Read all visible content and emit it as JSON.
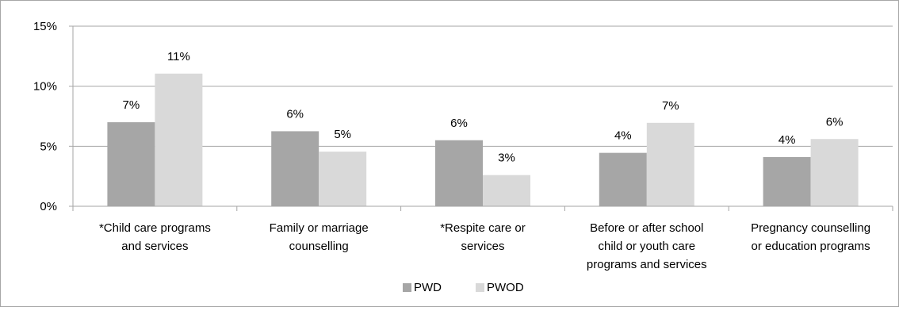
{
  "chart_data": {
    "type": "bar",
    "categories": [
      [
        "*Child care programs",
        "and services"
      ],
      [
        "Family or marriage",
        "counselling"
      ],
      [
        "*Respite care or",
        "services"
      ],
      [
        "Before or after school",
        "child or youth care",
        "programs and services"
      ],
      [
        "Pregnancy counselling",
        "or education programs"
      ]
    ],
    "series": [
      {
        "name": "PWD",
        "values": [
          7.0,
          6.25,
          5.5,
          4.45,
          4.1
        ],
        "labels": [
          "7%",
          "6%",
          "6%",
          "4%",
          "4%"
        ],
        "color": "#a6a6a6"
      },
      {
        "name": "PWOD",
        "values": [
          11.05,
          4.55,
          2.6,
          6.95,
          5.6
        ],
        "labels": [
          "11%",
          "5%",
          "3%",
          "7%",
          "6%"
        ],
        "color": "#d9d9d9"
      }
    ],
    "ylim": [
      0,
      15
    ],
    "yticks": [
      {
        "value": 0,
        "label": "0%"
      },
      {
        "value": 5,
        "label": "5%"
      },
      {
        "value": 10,
        "label": "10%"
      },
      {
        "value": 15,
        "label": "15%"
      }
    ],
    "grid": true,
    "legend_position": "bottom"
  }
}
